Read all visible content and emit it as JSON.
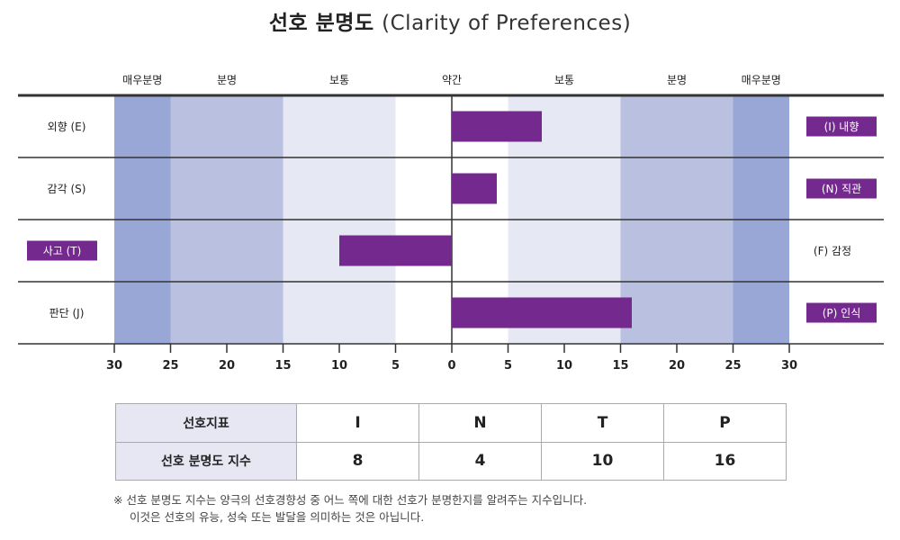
{
  "title": {
    "ko": "선호 분명도",
    "en": "(Clarity of Preferences)"
  },
  "chart_data": {
    "type": "bar",
    "title": "선호 분명도 (Clarity of Preferences)",
    "xlim": [
      -30,
      30
    ],
    "x_ticks": [
      30,
      25,
      20,
      15,
      10,
      5,
      0,
      5,
      10,
      15,
      20,
      25,
      30
    ],
    "zones": [
      "매우분명",
      "분명",
      "보통",
      "약간",
      "보통",
      "분명",
      "매우분명"
    ],
    "colors": {
      "very_clear": "#98a7d6",
      "clear": "#b9c0e0",
      "moderate": "#e6e8f4",
      "bar": "#74298e",
      "axis": "#333333"
    },
    "rows": [
      {
        "left_label": "외향 (E)",
        "right_label": "(I) 내향",
        "selected": "right",
        "value": 8
      },
      {
        "left_label": "감각 (S)",
        "right_label": "(N) 직관",
        "selected": "right",
        "value": 4
      },
      {
        "left_label": "사고 (T)",
        "right_label": "(F) 감정",
        "selected": "left",
        "value": 10
      },
      {
        "left_label": "판단 (J)",
        "right_label": "(P) 인식",
        "selected": "right",
        "value": 16
      }
    ]
  },
  "table": {
    "row1_header": "선호지표",
    "row2_header": "선호 분명도 지수",
    "letters": [
      "I",
      "N",
      "T",
      "P"
    ],
    "values": [
      "8",
      "4",
      "10",
      "16"
    ]
  },
  "note": {
    "line1": "※ 선호 분명도 지수는 양극의 선호경향성 중 어느 쪽에 대한 선호가 분명한지를 알려주는 지수입니다.",
    "line2": "이것은 선호의 유능, 성숙 또는 발달을 의미하는 것은 아닙니다."
  }
}
